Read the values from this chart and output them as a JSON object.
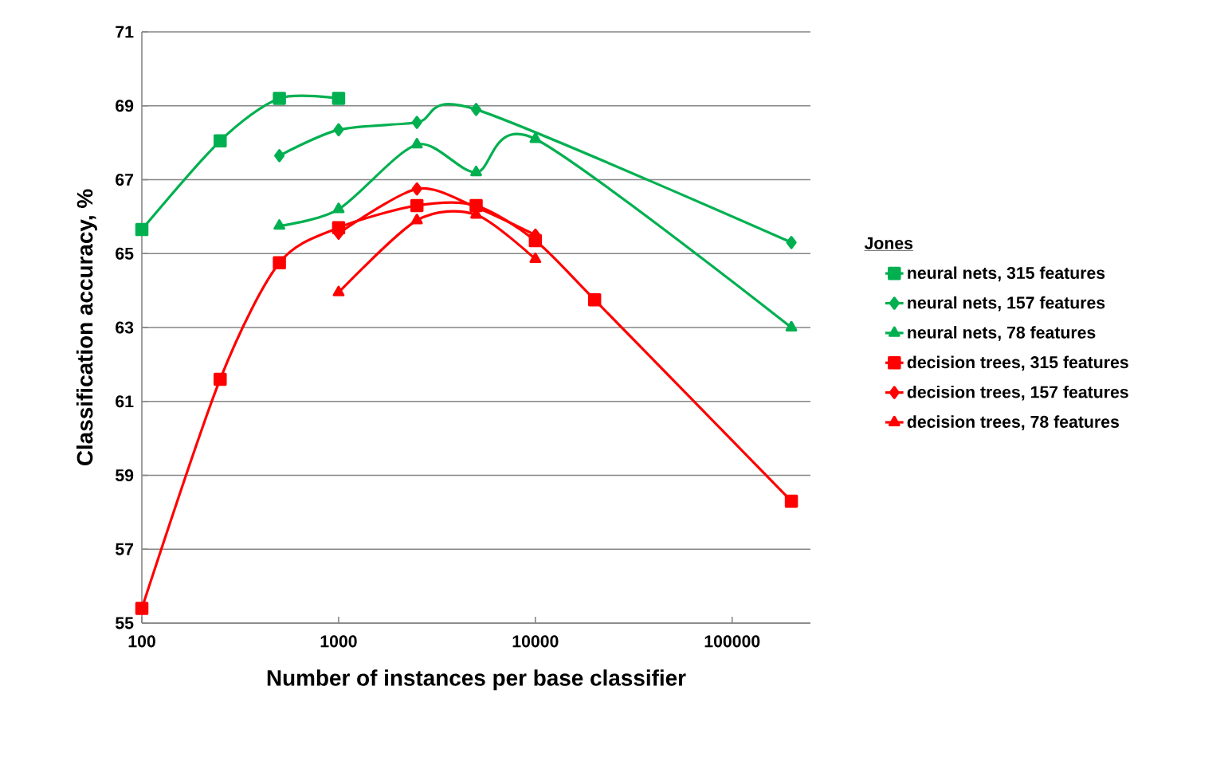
{
  "chart_data": {
    "type": "line",
    "xlabel": "Number of instances  per base  classifier",
    "ylabel": "Classification  accuracy, %",
    "legend_title": "Jones",
    "log": "x",
    "grid": "y",
    "legend": "right",
    "xlim": [
      100,
      250000
    ],
    "xticks": [
      100,
      1000,
      10000,
      100000
    ],
    "ylim": [
      55,
      71
    ],
    "yticks": [
      55,
      57,
      59,
      61,
      63,
      65,
      67,
      69,
      71
    ],
    "series": [
      {
        "name": "neural nets, 315 features",
        "color": "#00b050",
        "marker": "square",
        "x": [
          100,
          250,
          500,
          1000
        ],
        "values": [
          65.65,
          68.05,
          69.2,
          69.2
        ]
      },
      {
        "name": "neural nets, 157 features",
        "color": "#00b050",
        "marker": "diamond",
        "x": [
          500,
          1000,
          2500,
          5000,
          200000
        ],
        "values": [
          67.65,
          68.35,
          68.55,
          68.9,
          65.3
        ]
      },
      {
        "name": "neural nets, 78 features",
        "color": "#00b050",
        "marker": "triangle",
        "x": [
          500,
          1000,
          2500,
          5000,
          10000,
          200000
        ],
        "values": [
          65.75,
          66.2,
          67.95,
          67.2,
          68.1,
          63.0
        ]
      },
      {
        "name": "decision trees, 315 features",
        "color": "#ff0000",
        "marker": "square",
        "x": [
          100,
          250,
          500,
          1000,
          2500,
          5000,
          10000,
          20000,
          200000
        ],
        "values": [
          55.4,
          61.6,
          64.75,
          65.7,
          66.3,
          66.3,
          65.35,
          63.75,
          58.3
        ]
      },
      {
        "name": "decision trees, 157 features",
        "color": "#ff0000",
        "marker": "diamond",
        "x": [
          1000,
          2500,
          5000,
          10000
        ],
        "values": [
          65.55,
          66.75,
          66.25,
          65.5
        ]
      },
      {
        "name": "decision trees, 78 features",
        "color": "#ff0000",
        "marker": "triangle",
        "x": [
          1000,
          2500,
          5000,
          10000
        ],
        "values": [
          63.95,
          65.9,
          66.05,
          64.85
        ]
      }
    ]
  }
}
